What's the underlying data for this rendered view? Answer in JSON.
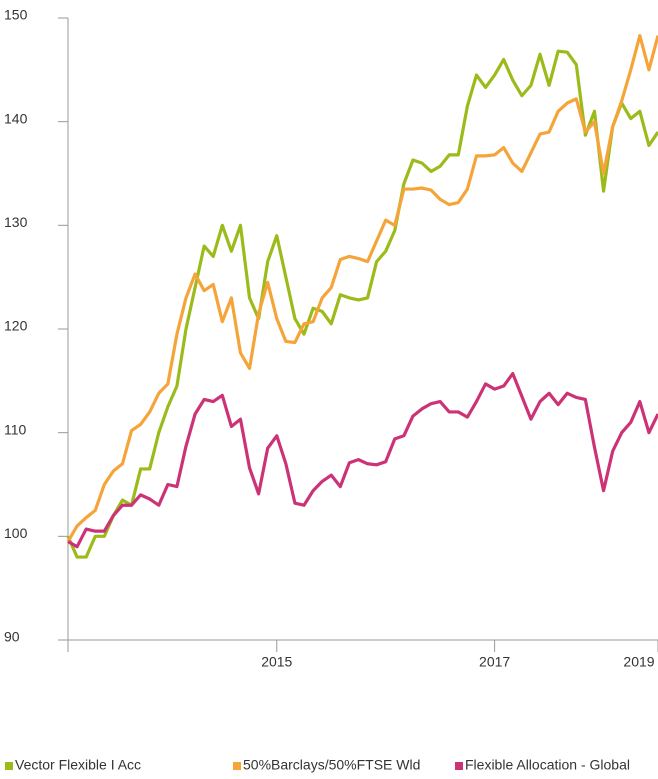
{
  "chart_data": {
    "type": "line",
    "categories": [
      null,
      null,
      null,
      null,
      null,
      null,
      null,
      null,
      null,
      null,
      null,
      null,
      null,
      null,
      null,
      null,
      null,
      null,
      null,
      null,
      null,
      null,
      null,
      "2015",
      null,
      null,
      null,
      null,
      null,
      null,
      null,
      null,
      null,
      null,
      null,
      null,
      null,
      null,
      null,
      null,
      null,
      null,
      null,
      null,
      null,
      null,
      null,
      "2017",
      null,
      null,
      null,
      null,
      null,
      null,
      null,
      null,
      null,
      null,
      null,
      null,
      null,
      null,
      null,
      null,
      null,
      "2019"
    ],
    "series": [
      {
        "name": "Vector Flexible I Acc",
        "color": "#9bbb1a",
        "values": [
          100,
          98,
          98,
          100,
          100,
          102,
          103.5,
          103,
          106.5,
          106.5,
          110,
          112.5,
          114.5,
          120,
          124,
          128,
          127,
          130,
          127.5,
          130,
          123,
          121,
          126.5,
          129,
          125,
          121,
          119.5,
          122,
          121.7,
          120.5,
          123.3,
          123,
          122.8,
          123,
          126.5,
          127.5,
          129.5,
          134,
          136.3,
          136,
          135.2,
          135.7,
          136.8,
          136.8,
          141.5,
          144.5,
          143.3,
          144.5,
          146,
          144,
          142.5,
          143.5,
          146.5,
          143.5,
          146.8,
          146.7,
          145.5,
          138.7,
          141,
          133.3,
          139.5,
          141.8,
          140.3,
          141,
          137.7,
          139
        ]
      },
      {
        "name": "50%Barclays/50%FTSE Wld",
        "color": "#f5a43a",
        "values": [
          99.5,
          101,
          101.8,
          102.5,
          105,
          106.3,
          107,
          110.2,
          110.8,
          112,
          113.8,
          114.7,
          119.5,
          123,
          125.3,
          123.7,
          124.3,
          120.7,
          123,
          117.7,
          116.2,
          121.5,
          124.5,
          121,
          118.8,
          118.7,
          120.5,
          120.7,
          123,
          124,
          126.7,
          127,
          126.8,
          126.5,
          128.5,
          130.5,
          130,
          133.5,
          133.5,
          133.6,
          133.4,
          132.5,
          132,
          132.2,
          133.5,
          136.7,
          136.7,
          136.8,
          137.5,
          136,
          135.2,
          137,
          138.8,
          139,
          141,
          141.8,
          142.2,
          139,
          140,
          135,
          139.5,
          142,
          145,
          148.3,
          145,
          148.3
        ]
      },
      {
        "name": "Flexible Allocation - Global",
        "color": "#cc3377",
        "values": [
          99.5,
          99,
          100.7,
          100.5,
          100.5,
          102,
          103,
          103,
          104,
          103.6,
          103,
          105,
          104.8,
          108.7,
          111.8,
          113.2,
          113,
          113.6,
          110.6,
          111.3,
          106.6,
          104.1,
          108.5,
          109.7,
          107,
          103.2,
          103,
          104.4,
          105.3,
          105.9,
          104.8,
          107.1,
          107.4,
          107,
          106.9,
          107.2,
          109.4,
          109.7,
          111.6,
          112.3,
          112.8,
          113,
          112,
          112,
          111.5,
          113,
          114.7,
          114.2,
          114.5,
          115.7,
          113.5,
          111.3,
          113,
          113.8,
          112.7,
          113.8,
          113.4,
          113.2,
          108.6,
          104.4,
          108.2,
          110,
          111,
          113,
          110,
          111.8
        ]
      }
    ],
    "ylim": [
      90,
      150
    ],
    "yticks": [
      90,
      100,
      110,
      120,
      130,
      140,
      150
    ]
  }
}
